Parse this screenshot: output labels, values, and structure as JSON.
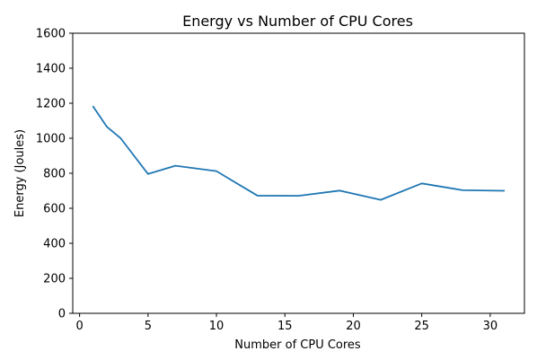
{
  "chart_data": {
    "type": "line",
    "title": "Energy vs Number of CPU Cores",
    "xlabel": "Number of CPU Cores",
    "ylabel": "Energy (Joules)",
    "xlim": [
      -0.5,
      32.5
    ],
    "ylim": [
      0,
      1600
    ],
    "xticks": [
      0,
      5,
      10,
      15,
      20,
      25,
      30
    ],
    "yticks": [
      0,
      200,
      400,
      600,
      800,
      1000,
      1200,
      1400,
      1600
    ],
    "grid": false,
    "series": [
      {
        "color": "#1f77b4",
        "x": [
          1,
          2,
          3,
          5,
          7,
          10,
          13,
          16,
          19,
          22,
          25,
          28,
          31
        ],
        "y": [
          1180,
          1065,
          1000,
          796,
          843,
          812,
          672,
          671,
          701,
          648,
          742,
          703,
          700
        ]
      }
    ]
  }
}
